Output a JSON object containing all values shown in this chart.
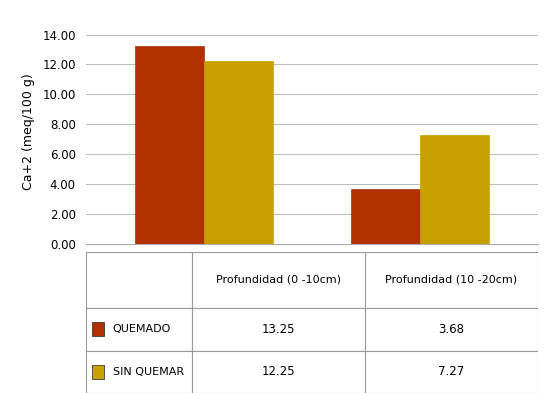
{
  "categories": [
    "Profundidad (0 -10cm)",
    "Profundidad (10 -20cm)"
  ],
  "series": [
    {
      "label": "QUEMADO",
      "values": [
        13.25,
        3.68
      ],
      "color": "#B03000"
    },
    {
      "label": "SIN QUEMAR",
      "values": [
        12.25,
        7.27
      ],
      "color": "#C8A000"
    }
  ],
  "ylabel": "Ca+2 (meq/100 g)",
  "ylim": [
    0,
    15.0
  ],
  "yticks": [
    0.0,
    2.0,
    4.0,
    6.0,
    8.0,
    10.0,
    12.0,
    14.0
  ],
  "bar_width": 0.32,
  "table_col_header": [
    "",
    "Profundidad (0 -10cm)",
    "Profundidad (10 -20cm)"
  ],
  "table_rows": [
    [
      "QUEMADO",
      "13.25",
      "3.68"
    ],
    [
      "SIN QUEMAR",
      "12.25",
      "7.27"
    ]
  ],
  "legend_colors": [
    "#B03000",
    "#C8A000"
  ],
  "grid_color": "#bbbbbb",
  "fig_width": 5.52,
  "fig_height": 3.93
}
